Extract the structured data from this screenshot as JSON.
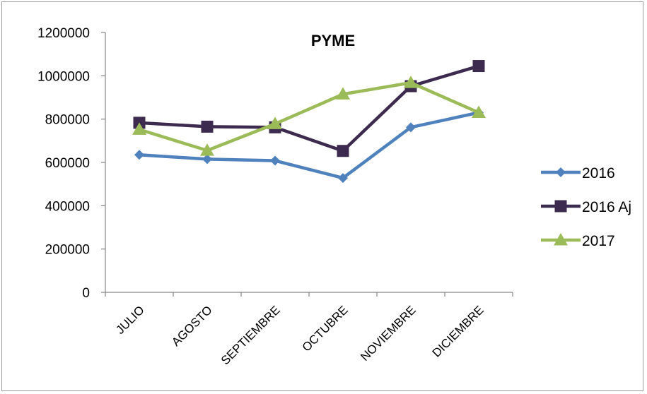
{
  "chart_data": {
    "type": "line",
    "title": "PYME",
    "xlabel": "",
    "ylabel": "",
    "categories": [
      "JULIO",
      "AGOSTO",
      "SEPTIEMBRE",
      "OCTUBRE",
      "NOVIEMBRE",
      "DICIEMBRE"
    ],
    "ylim": [
      0,
      1200000
    ],
    "yticks": [
      "0",
      "200000",
      "400000",
      "600000",
      "800000",
      "1000000",
      "1200000"
    ],
    "grid": false,
    "legend_position": "right",
    "series": [
      {
        "name": "2016",
        "color": "#4f81bd",
        "marker": "diamond",
        "values": [
          635000,
          615000,
          608000,
          528000,
          762000,
          830000
        ]
      },
      {
        "name": "2016 Aj",
        "color": "#3d2b4f",
        "marker": "square",
        "values": [
          783000,
          765000,
          762000,
          653000,
          952000,
          1045000
        ]
      },
      {
        "name": "2017",
        "color": "#9bbb59",
        "marker": "triangle",
        "values": [
          752000,
          655000,
          778000,
          915000,
          968000,
          830000
        ]
      }
    ]
  }
}
